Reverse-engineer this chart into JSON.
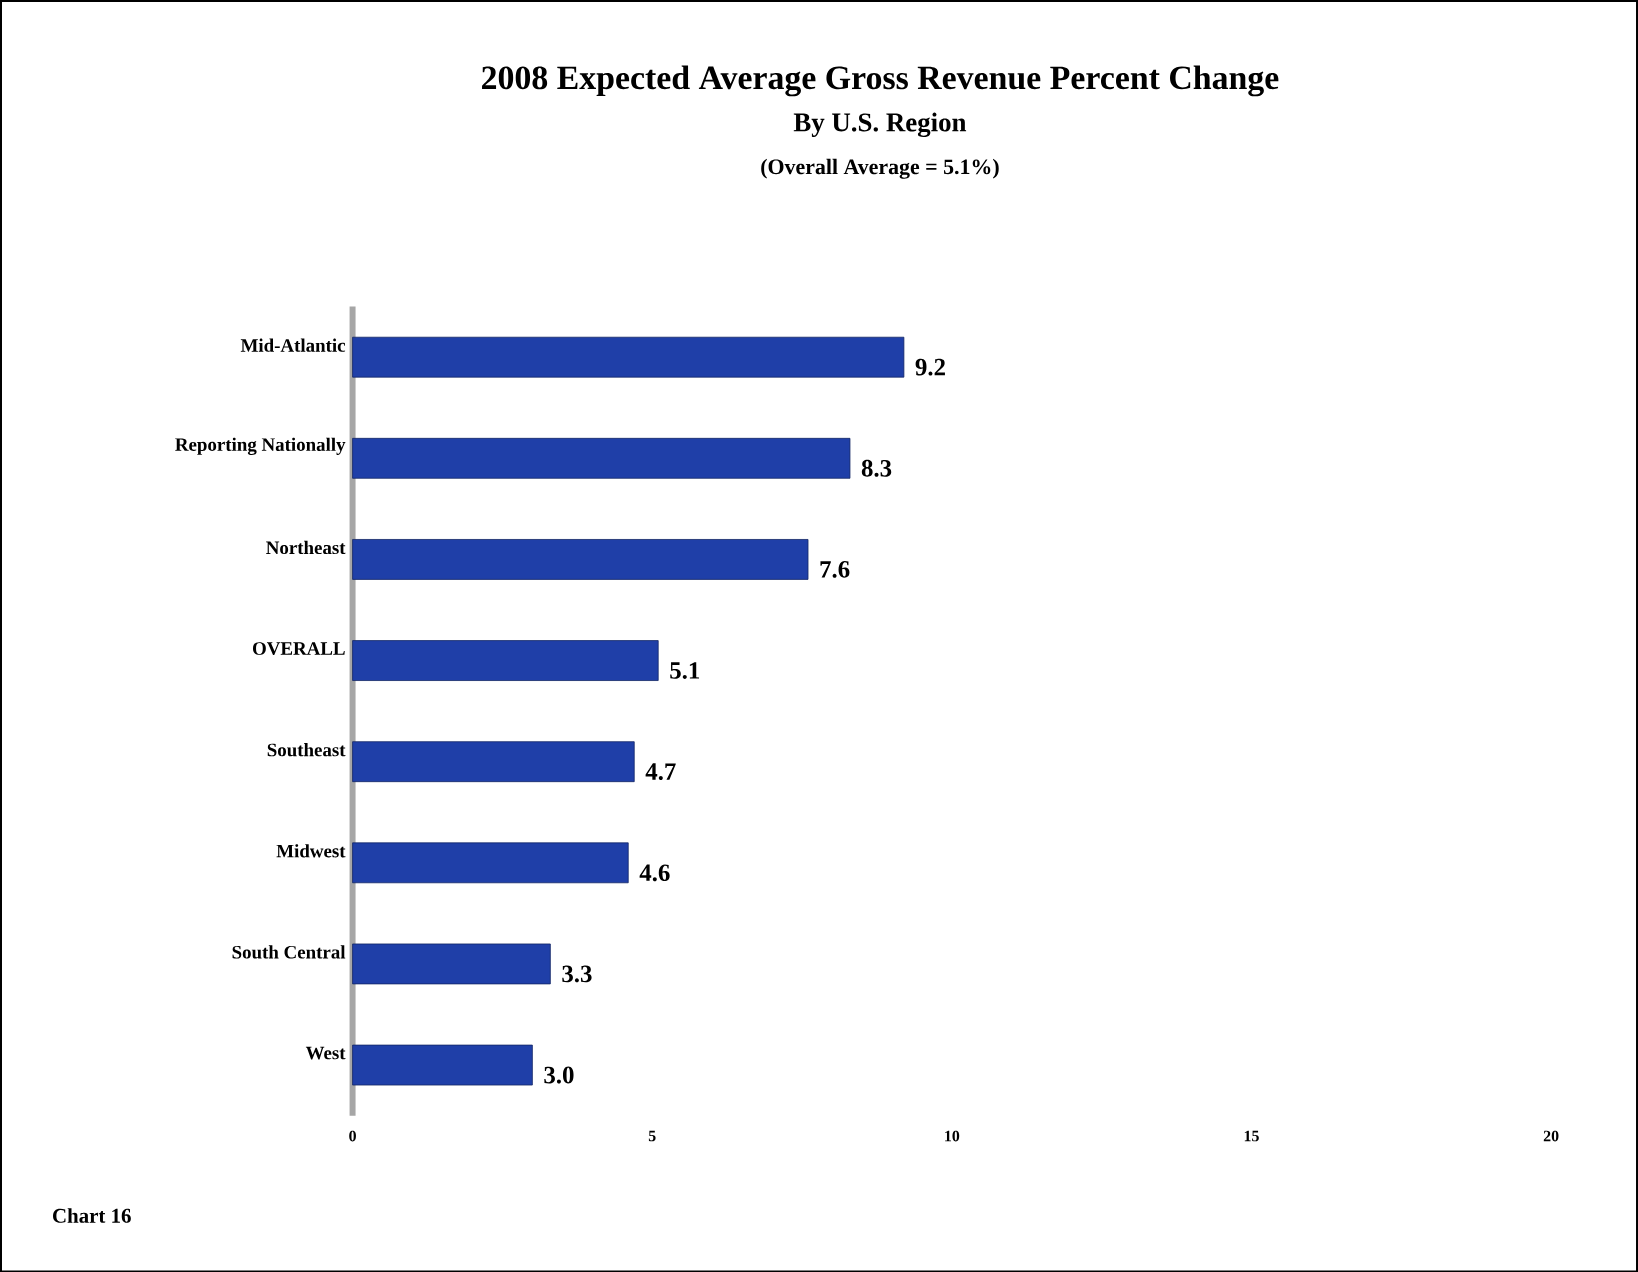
{
  "chart_data": {
    "type": "bar",
    "orientation": "horizontal",
    "title": "2008 Expected Average Gross Revenue Percent Change",
    "subtitle": "By U.S. Region",
    "annotations": [
      "(Overall Average = 5.1%)",
      "Chart 16"
    ],
    "categories": [
      "Mid-Atlantic",
      "Reporting Nationally",
      "Northeast",
      "OVERALL",
      "Southeast",
      "Midwest",
      "South Central",
      "West"
    ],
    "values": [
      9.2,
      8.3,
      7.6,
      5.1,
      4.7,
      4.6,
      3.3,
      3.0
    ],
    "value_labels": [
      "9.2",
      "8.3",
      "7.6",
      "5.1",
      "4.7",
      "4.6",
      "3.3",
      "3.0"
    ],
    "color": "#1f3fa8",
    "xlim": [
      0,
      20
    ],
    "xticks": [
      0,
      5,
      10,
      15,
      20
    ]
  }
}
